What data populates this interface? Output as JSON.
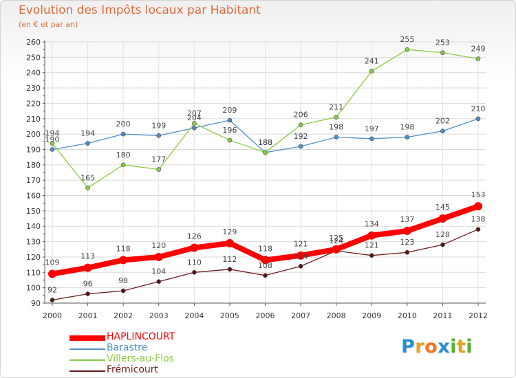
{
  "title": "Evolution des Impôts locaux par Habitant",
  "subtitle": "(en € et par an)",
  "logo": {
    "letters": [
      "P",
      "r",
      "o",
      "x",
      "i",
      "t",
      "i"
    ],
    "colors": [
      "#2a8fd1",
      "#e8a020",
      "#f07820",
      "#2a8fd1",
      "#5ab030",
      "#e8a020",
      "#5ab030"
    ]
  },
  "chart_data": {
    "type": "line",
    "title": "Evolution des Impôts locaux par Habitant",
    "subtitle": "(en € et par an)",
    "x": [
      "2000",
      "2001",
      "2002",
      "2003",
      "2004",
      "2005",
      "2006",
      "2007",
      "2008",
      "2009",
      "2010",
      "2011",
      "2012"
    ],
    "ylim": [
      90,
      260
    ],
    "yticks": [
      90,
      100,
      110,
      120,
      130,
      140,
      150,
      160,
      170,
      180,
      190,
      200,
      210,
      220,
      230,
      240,
      250,
      260
    ],
    "grid": true,
    "legend_position": "bottom-left",
    "series": [
      {
        "name": "HAPLINCOURT",
        "color": "#ff0000",
        "values": [
          109,
          113,
          118,
          120,
          126,
          129,
          118,
          121,
          125,
          134,
          137,
          145,
          153
        ]
      },
      {
        "name": "Barastre",
        "color": "#4f8fc8",
        "values": [
          190,
          194,
          200,
          199,
          204,
          209,
          188,
          192,
          198,
          197,
          198,
          202,
          210
        ]
      },
      {
        "name": "Villers-au-Flos",
        "color": "#88cc44",
        "values": [
          194,
          165,
          180,
          177,
          207,
          196,
          188,
          206,
          211,
          241,
          255,
          253,
          249
        ]
      },
      {
        "name": "Frémicourt",
        "color": "#6b1a1a",
        "values": [
          92,
          96,
          98,
          104,
          110,
          112,
          108,
          114,
          124,
          121,
          123,
          128,
          138
        ]
      }
    ]
  }
}
